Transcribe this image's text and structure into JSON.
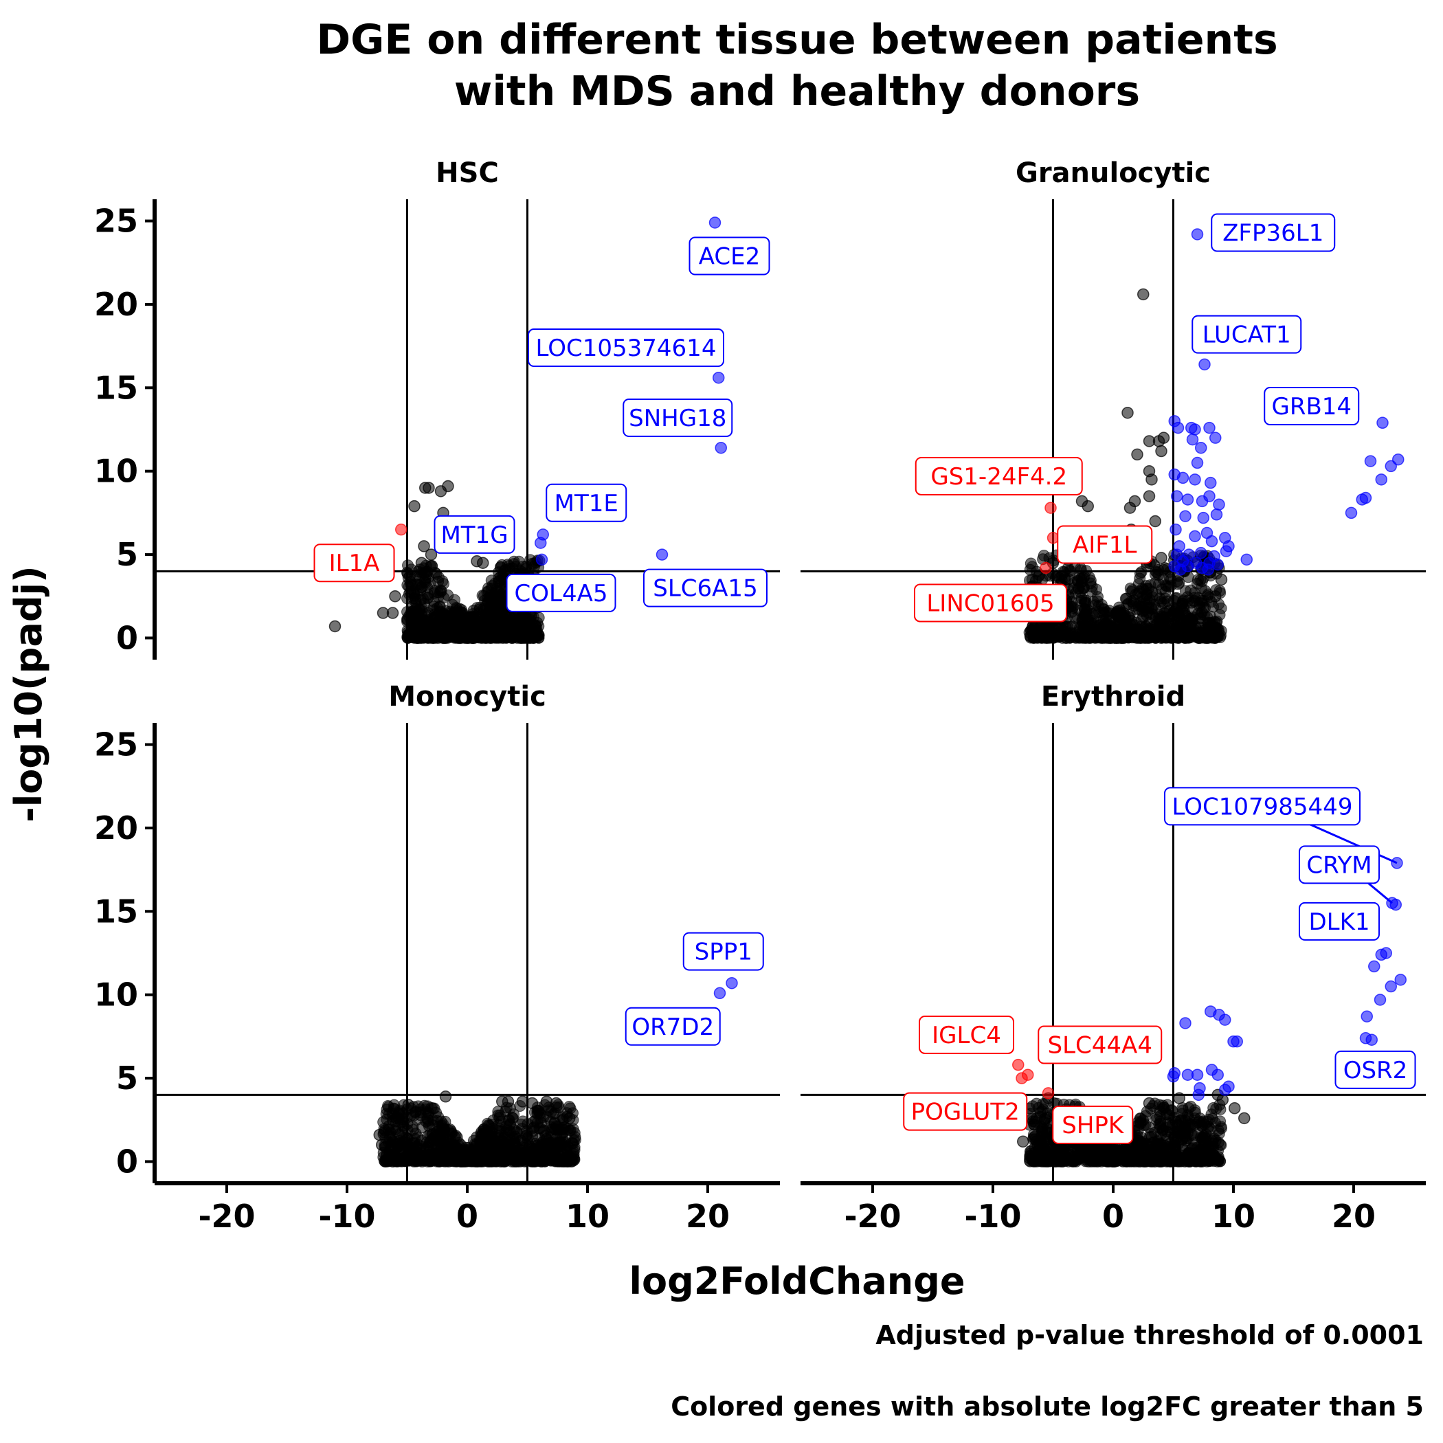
{
  "chart_data": {
    "type": "scatter",
    "title_lines": [
      "DGE on different tissue between patients",
      "with MDS and healthy donors"
    ],
    "xlabel": "log2FoldChange",
    "ylabel": "-log10(padj)",
    "captions": [
      "Adjusted p-value threshold of 0.0001",
      "Colored genes with absolute log2FC greater than 5"
    ],
    "xlim": [
      -26,
      26
    ],
    "ylim": [
      -1.3,
      26.3
    ],
    "x_ticks": [
      -20,
      -10,
      0,
      10,
      20
    ],
    "x_tick_labels": [
      "-20",
      "-10",
      "0",
      "10",
      "20"
    ],
    "y_ticks": [
      0,
      5,
      10,
      15,
      20,
      25
    ],
    "y_tick_labels": [
      "0",
      "5",
      "10",
      "15",
      "20",
      "25"
    ],
    "thresholds": {
      "log2fc": [
        -5,
        5
      ],
      "neg_log10_padj": 4
    },
    "colors": {
      "up": "#0000ff",
      "down": "#ff0000",
      "ns": "#000000"
    },
    "panels": [
      {
        "name": "HSC",
        "cloud": {
          "x_range": [
            -5,
            6
          ],
          "y_max": 4.7
        },
        "points": [
          {
            "x": -11,
            "y": 0.7,
            "c": "ns"
          },
          {
            "x": -6.2,
            "y": 1.5,
            "c": "ns"
          },
          {
            "x": -6,
            "y": 2.5,
            "c": "ns"
          },
          {
            "x": -7,
            "y": 1.5,
            "c": "ns"
          },
          {
            "x": -3.5,
            "y": 9,
            "c": "ns"
          },
          {
            "x": -3.2,
            "y": 9,
            "c": "ns"
          },
          {
            "x": -2.2,
            "y": 8.8,
            "c": "ns"
          },
          {
            "x": -1.6,
            "y": 9.1,
            "c": "ns"
          },
          {
            "x": -4.4,
            "y": 7.9,
            "c": "ns"
          },
          {
            "x": -2,
            "y": 7.5,
            "c": "ns"
          },
          {
            "x": -3.6,
            "y": 5.5,
            "c": "ns"
          },
          {
            "x": -3,
            "y": 5,
            "c": "ns"
          },
          {
            "x": -3.8,
            "y": 4.5,
            "c": "ns"
          },
          {
            "x": 0.8,
            "y": 4.6,
            "c": "ns"
          },
          {
            "x": 1.3,
            "y": 4.5,
            "c": "ns"
          },
          {
            "x": -5.5,
            "y": 6.5,
            "c": "down"
          },
          {
            "x": 20.6,
            "y": 24.9,
            "c": "up"
          },
          {
            "x": 20.9,
            "y": 15.6,
            "c": "up"
          },
          {
            "x": 21.1,
            "y": 11.4,
            "c": "up"
          },
          {
            "x": 6.3,
            "y": 6.2,
            "c": "up"
          },
          {
            "x": 6.1,
            "y": 5.7,
            "c": "up"
          },
          {
            "x": 6.2,
            "y": 4.7,
            "c": "up"
          },
          {
            "x": 16.2,
            "y": 5,
            "c": "up"
          }
        ],
        "labels": [
          {
            "text": "ACE2",
            "x": 21.8,
            "y": 22.9,
            "c": "up"
          },
          {
            "text": "LOC105374614",
            "x": 13.2,
            "y": 17.4,
            "c": "up"
          },
          {
            "text": "SNHG18",
            "x": 17.5,
            "y": 13.2,
            "c": "up"
          },
          {
            "text": "MT1E",
            "x": 9.9,
            "y": 8.1,
            "c": "up"
          },
          {
            "text": "MT1G",
            "x": 0.6,
            "y": 6.2,
            "c": "up"
          },
          {
            "text": "IL1A",
            "x": -9.4,
            "y": 4.5,
            "c": "down"
          },
          {
            "text": "COL4A5",
            "x": 7.8,
            "y": 2.7,
            "c": "up"
          },
          {
            "text": "SLC6A15",
            "x": 19.8,
            "y": 3,
            "c": "up"
          }
        ]
      },
      {
        "name": "Granulocytic",
        "cloud": {
          "x_range": [
            -7,
            9
          ],
          "y_max": 5
        },
        "points": [
          {
            "x": 2.5,
            "y": 20.6,
            "c": "ns"
          },
          {
            "x": 1.2,
            "y": 13.5,
            "c": "ns"
          },
          {
            "x": 2,
            "y": 11,
            "c": "ns"
          },
          {
            "x": 3,
            "y": 11.8,
            "c": "ns"
          },
          {
            "x": 3.8,
            "y": 11.8,
            "c": "ns"
          },
          {
            "x": 4,
            "y": 11.2,
            "c": "ns"
          },
          {
            "x": 4.2,
            "y": 12,
            "c": "ns"
          },
          {
            "x": 3,
            "y": 10,
            "c": "ns"
          },
          {
            "x": 3.2,
            "y": 9.5,
            "c": "ns"
          },
          {
            "x": 3,
            "y": 8.5,
            "c": "ns"
          },
          {
            "x": 1.8,
            "y": 8.2,
            "c": "ns"
          },
          {
            "x": 1.4,
            "y": 7.8,
            "c": "ns"
          },
          {
            "x": -2.6,
            "y": 8.2,
            "c": "ns"
          },
          {
            "x": -2.1,
            "y": 7.9,
            "c": "ns"
          },
          {
            "x": 3.5,
            "y": 7,
            "c": "ns"
          },
          {
            "x": 1.5,
            "y": 6.5,
            "c": "ns"
          },
          {
            "x": -2.2,
            "y": 5.3,
            "c": "ns"
          },
          {
            "x": 4,
            "y": 4.8,
            "c": "ns"
          },
          {
            "x": -5,
            "y": 4.5,
            "c": "ns"
          },
          {
            "x": 8.5,
            "y": 2.5,
            "c": "ns"
          },
          {
            "x": 9,
            "y": 3.5,
            "c": "ns"
          },
          {
            "x": -5.2,
            "y": 7.8,
            "c": "down"
          },
          {
            "x": -5,
            "y": 6,
            "c": "down"
          },
          {
            "x": -5.6,
            "y": 4.2,
            "c": "down"
          },
          {
            "x": 7,
            "y": 24.2,
            "c": "up"
          },
          {
            "x": 7.6,
            "y": 16.4,
            "c": "up"
          },
          {
            "x": 5.1,
            "y": 13,
            "c": "up"
          },
          {
            "x": 5.4,
            "y": 12.6,
            "c": "up"
          },
          {
            "x": 6.5,
            "y": 12.6,
            "c": "up"
          },
          {
            "x": 6.8,
            "y": 12.5,
            "c": "up"
          },
          {
            "x": 8,
            "y": 12.6,
            "c": "up"
          },
          {
            "x": 8.5,
            "y": 12,
            "c": "up"
          },
          {
            "x": 7.3,
            "y": 11.4,
            "c": "up"
          },
          {
            "x": 6.6,
            "y": 11.9,
            "c": "up"
          },
          {
            "x": 7,
            "y": 10.5,
            "c": "up"
          },
          {
            "x": 5.1,
            "y": 9.8,
            "c": "up"
          },
          {
            "x": 5.8,
            "y": 9.6,
            "c": "up"
          },
          {
            "x": 6.8,
            "y": 9.5,
            "c": "up"
          },
          {
            "x": 8.1,
            "y": 9.3,
            "c": "up"
          },
          {
            "x": 5.3,
            "y": 8.5,
            "c": "up"
          },
          {
            "x": 6.2,
            "y": 8.3,
            "c": "up"
          },
          {
            "x": 7.4,
            "y": 8.2,
            "c": "up"
          },
          {
            "x": 8,
            "y": 8.5,
            "c": "up"
          },
          {
            "x": 8.8,
            "y": 8.0,
            "c": "up"
          },
          {
            "x": 6,
            "y": 7.3,
            "c": "up"
          },
          {
            "x": 7.5,
            "y": 7.2,
            "c": "up"
          },
          {
            "x": 8.6,
            "y": 7.4,
            "c": "up"
          },
          {
            "x": 5.2,
            "y": 6.5,
            "c": "up"
          },
          {
            "x": 6.8,
            "y": 6.1,
            "c": "up"
          },
          {
            "x": 7.8,
            "y": 6.3,
            "c": "up"
          },
          {
            "x": 9.3,
            "y": 6.0,
            "c": "up"
          },
          {
            "x": 5.5,
            "y": 5.5,
            "c": "up"
          },
          {
            "x": 8.2,
            "y": 5.8,
            "c": "up"
          },
          {
            "x": 9.6,
            "y": 5.5,
            "c": "up"
          },
          {
            "x": 5.3,
            "y": 5.0,
            "c": "up"
          },
          {
            "x": 6.3,
            "y": 5.0,
            "c": "up"
          },
          {
            "x": 7.3,
            "y": 5.1,
            "c": "up"
          },
          {
            "x": 8.4,
            "y": 4.9,
            "c": "up"
          },
          {
            "x": 9.4,
            "y": 5.2,
            "c": "up"
          },
          {
            "x": 5.8,
            "y": 4.6,
            "c": "up"
          },
          {
            "x": 6.9,
            "y": 4.5,
            "c": "up"
          },
          {
            "x": 8,
            "y": 4.5,
            "c": "up"
          },
          {
            "x": 5.1,
            "y": 4.3,
            "c": "up"
          },
          {
            "x": 6.2,
            "y": 4.3,
            "c": "up"
          },
          {
            "x": 7.4,
            "y": 4.2,
            "c": "up"
          },
          {
            "x": 8.7,
            "y": 4.4,
            "c": "up"
          },
          {
            "x": 5.6,
            "y": 4.1,
            "c": "up"
          },
          {
            "x": 7.9,
            "y": 4.1,
            "c": "up"
          },
          {
            "x": 11.1,
            "y": 4.7,
            "c": "up"
          },
          {
            "x": 22.4,
            "y": 12.9,
            "c": "up"
          },
          {
            "x": 21.4,
            "y": 10.6,
            "c": "up"
          },
          {
            "x": 23.1,
            "y": 10.3,
            "c": "up"
          },
          {
            "x": 23.7,
            "y": 10.7,
            "c": "up"
          },
          {
            "x": 22.3,
            "y": 9.5,
            "c": "up"
          },
          {
            "x": 21.0,
            "y": 8.4,
            "c": "up"
          },
          {
            "x": 20.7,
            "y": 8.3,
            "c": "up"
          },
          {
            "x": 19.8,
            "y": 7.5,
            "c": "up"
          }
        ],
        "labels": [
          {
            "text": "ZFP36L1",
            "x": 13.3,
            "y": 24.3,
            "c": "up"
          },
          {
            "text": "LUCAT1",
            "x": 11.1,
            "y": 18.2,
            "c": "up"
          },
          {
            "text": "GRB14",
            "x": 16.5,
            "y": 13.9,
            "c": "up"
          },
          {
            "text": "GS1-24F4.2",
            "x": -9.5,
            "y": 9.7,
            "c": "down"
          },
          {
            "text": "AIF1L",
            "x": -0.7,
            "y": 5.6,
            "c": "down"
          },
          {
            "text": "LINC01605",
            "x": -10.2,
            "y": 2.1,
            "c": "down"
          }
        ]
      },
      {
        "name": "Monocytic",
        "cloud": {
          "x_range": [
            -7,
            9
          ],
          "y_max": 3.4
        },
        "points": [
          {
            "x": -1.8,
            "y": 3.9,
            "c": "ns"
          },
          {
            "x": 2.9,
            "y": 3.6,
            "c": "ns"
          },
          {
            "x": 3.4,
            "y": 3.6,
            "c": "ns"
          },
          {
            "x": 4.6,
            "y": 3.6,
            "c": "ns"
          },
          {
            "x": 5.4,
            "y": 3.5,
            "c": "ns"
          },
          {
            "x": 6.6,
            "y": 3.6,
            "c": "ns"
          },
          {
            "x": 7.4,
            "y": 3.5,
            "c": "ns"
          },
          {
            "x": -4.9,
            "y": 3.4,
            "c": "ns"
          },
          {
            "x": -5.3,
            "y": 2.4,
            "c": "ns"
          },
          {
            "x": -7.3,
            "y": 1.6,
            "c": "ns"
          },
          {
            "x": -7.1,
            "y": 1.0,
            "c": "ns"
          },
          {
            "x": 8.5,
            "y": 2.6,
            "c": "ns"
          },
          {
            "x": 8.7,
            "y": 1.1,
            "c": "ns"
          },
          {
            "x": 22.0,
            "y": 10.7,
            "c": "up"
          },
          {
            "x": 21.0,
            "y": 10.1,
            "c": "up"
          }
        ],
        "labels": [
          {
            "text": "SPP1",
            "x": 21.3,
            "y": 12.6,
            "c": "up"
          },
          {
            "text": "OR7D2",
            "x": 17.1,
            "y": 8.1,
            "c": "up"
          }
        ]
      },
      {
        "name": "Erythroid",
        "cloud": {
          "x_range": [
            -7,
            9
          ],
          "y_max": 3.5
        },
        "points": [
          {
            "x": -6.5,
            "y": 1.5,
            "c": "ns"
          },
          {
            "x": -7.5,
            "y": 1.2,
            "c": "ns"
          },
          {
            "x": 3.0,
            "y": 3.5,
            "c": "ns"
          },
          {
            "x": 5.5,
            "y": 3.8,
            "c": "ns"
          },
          {
            "x": 8.7,
            "y": 4.0,
            "c": "ns"
          },
          {
            "x": 9.1,
            "y": 3.7,
            "c": "ns"
          },
          {
            "x": 10.1,
            "y": 3.2,
            "c": "ns"
          },
          {
            "x": 10.9,
            "y": 2.6,
            "c": "ns"
          },
          {
            "x": 5.2,
            "y": 2.4,
            "c": "ns"
          },
          {
            "x": -5.4,
            "y": 3.8,
            "c": "ns"
          },
          {
            "x": -7.9,
            "y": 5.8,
            "c": "down"
          },
          {
            "x": -7.6,
            "y": 5.0,
            "c": "down"
          },
          {
            "x": -7.1,
            "y": 5.2,
            "c": "down"
          },
          {
            "x": -5.4,
            "y": 4.1,
            "c": "down"
          },
          {
            "x": 23.6,
            "y": 17.9,
            "c": "up"
          },
          {
            "x": 23.2,
            "y": 15.5,
            "c": "up"
          },
          {
            "x": 23.5,
            "y": 15.4,
            "c": "up"
          },
          {
            "x": 22.3,
            "y": 12.4,
            "c": "up"
          },
          {
            "x": 22.7,
            "y": 12.5,
            "c": "up"
          },
          {
            "x": 21.7,
            "y": 11.7,
            "c": "up"
          },
          {
            "x": 23.1,
            "y": 10.5,
            "c": "up"
          },
          {
            "x": 23.9,
            "y": 10.9,
            "c": "up"
          },
          {
            "x": 22.2,
            "y": 9.7,
            "c": "up"
          },
          {
            "x": 21.1,
            "y": 8.7,
            "c": "up"
          },
          {
            "x": 21.0,
            "y": 7.4,
            "c": "up"
          },
          {
            "x": 21.5,
            "y": 7.3,
            "c": "up"
          },
          {
            "x": 8.1,
            "y": 9.0,
            "c": "up"
          },
          {
            "x": 8.8,
            "y": 8.8,
            "c": "up"
          },
          {
            "x": 9.3,
            "y": 8.5,
            "c": "up"
          },
          {
            "x": 6.0,
            "y": 8.3,
            "c": "up"
          },
          {
            "x": 10.0,
            "y": 7.2,
            "c": "up"
          },
          {
            "x": 10.3,
            "y": 7.2,
            "c": "up"
          },
          {
            "x": 5.0,
            "y": 5.1,
            "c": "up"
          },
          {
            "x": 5.1,
            "y": 5.3,
            "c": "up"
          },
          {
            "x": 6.2,
            "y": 5.2,
            "c": "up"
          },
          {
            "x": 7.0,
            "y": 5.2,
            "c": "up"
          },
          {
            "x": 7.2,
            "y": 4.4,
            "c": "up"
          },
          {
            "x": 8.2,
            "y": 5.5,
            "c": "up"
          },
          {
            "x": 8.7,
            "y": 5.2,
            "c": "up"
          },
          {
            "x": 9.3,
            "y": 4.3,
            "c": "up"
          },
          {
            "x": 9.6,
            "y": 4.5,
            "c": "up"
          },
          {
            "x": 7.1,
            "y": 4.0,
            "c": "up"
          }
        ],
        "labels": [
          {
            "text": "LOC107985449",
            "x": 12.4,
            "y": 21.3,
            "c": "up",
            "lx": 23.6,
            "ly": 17.9
          },
          {
            "text": "CRYM",
            "x": 18.8,
            "y": 17.8,
            "c": "up",
            "lx": 23.2,
            "ly": 15.5
          },
          {
            "text": "DLK1",
            "x": 18.8,
            "y": 14.4,
            "c": "up"
          },
          {
            "text": "OSR2",
            "x": 21.8,
            "y": 5.5,
            "c": "up"
          },
          {
            "text": "IGLC4",
            "x": -12.2,
            "y": 7.6,
            "c": "down"
          },
          {
            "text": "SLC44A4",
            "x": -1.1,
            "y": 7.0,
            "c": "down"
          },
          {
            "text": "POGLUT2",
            "x": -12.3,
            "y": 3.0,
            "c": "down"
          },
          {
            "text": "SHPK",
            "x": -1.7,
            "y": 2.2,
            "c": "down"
          }
        ]
      }
    ]
  }
}
